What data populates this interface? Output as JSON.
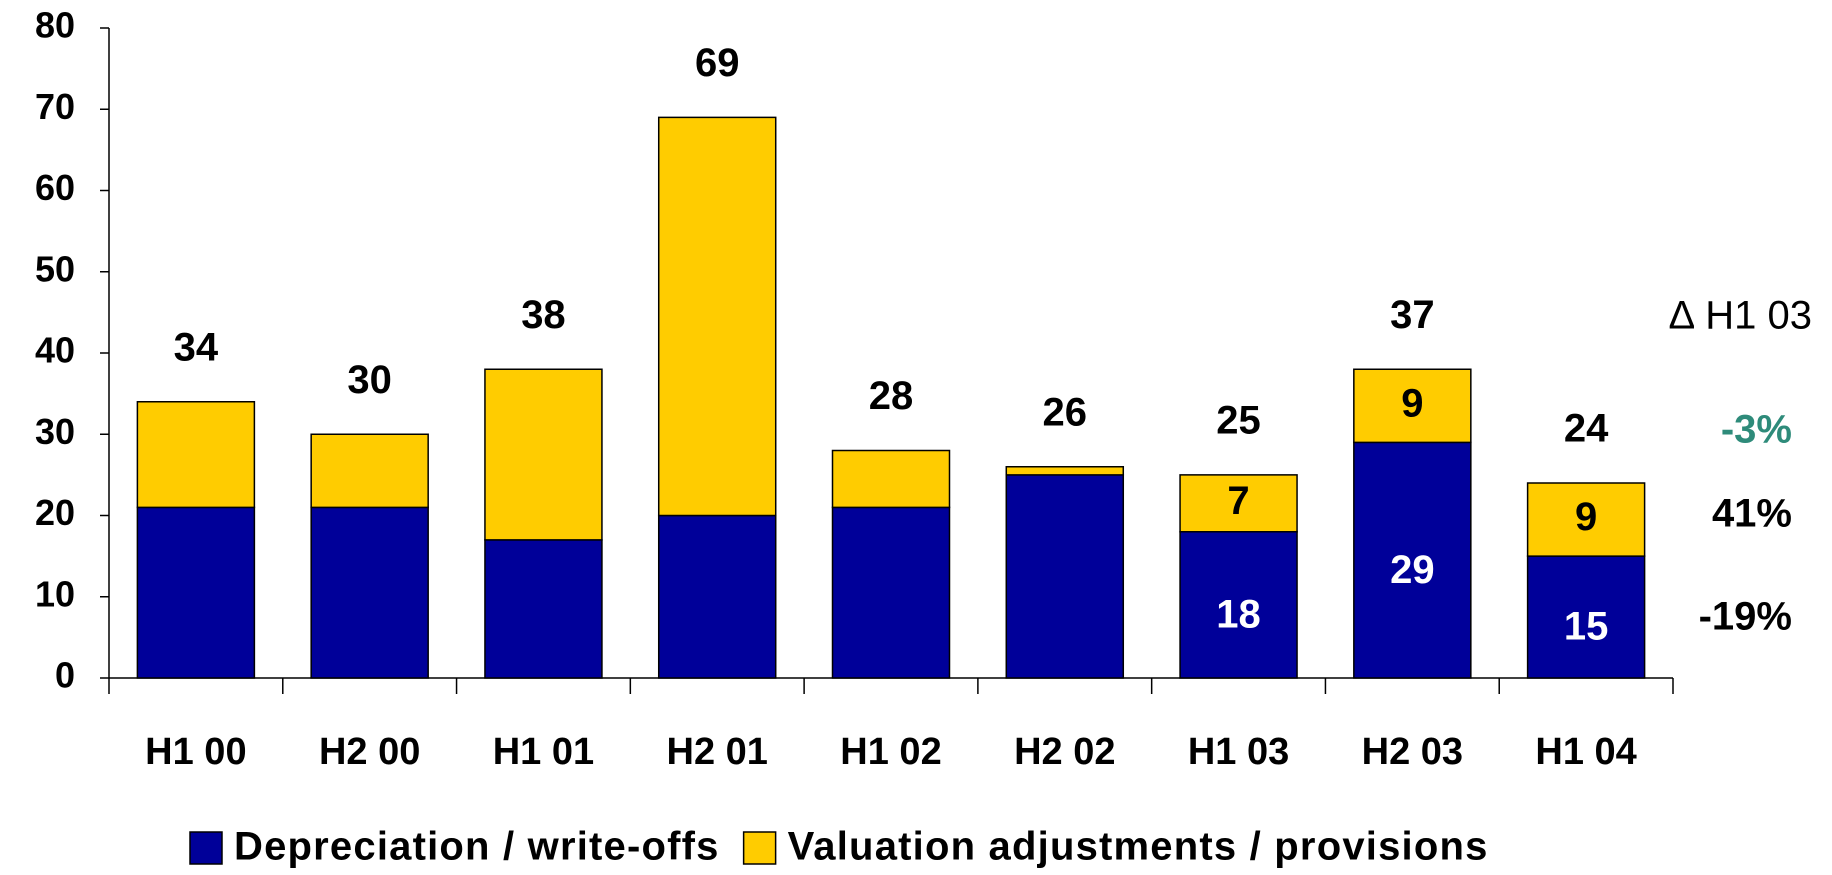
{
  "chart_data": {
    "type": "stacked_bar",
    "categories": [
      "H1 00",
      "H2 00",
      "H1 01",
      "H2 01",
      "H1 02",
      "H2 02",
      "H1 03",
      "H2 03",
      "H1 04"
    ],
    "series": [
      {
        "name": "Depreciation / write-offs",
        "color": "#000099",
        "label_color": "#ffffff",
        "values": [
          21,
          21,
          17,
          20,
          21,
          25,
          18,
          29,
          15
        ],
        "value_labels": [
          null,
          null,
          null,
          null,
          null,
          null,
          "18",
          "29",
          "15"
        ]
      },
      {
        "name": "Valuation adjustments / provisions",
        "color": "#ffcc00",
        "label_color": "#000000",
        "values": [
          13,
          9,
          21,
          49,
          7,
          1,
          7,
          9,
          9
        ],
        "value_labels": [
          null,
          null,
          null,
          null,
          null,
          null,
          "7",
          "9",
          "9"
        ]
      }
    ],
    "totals": [
      34,
      30,
      38,
      69,
      28,
      26,
      25,
      37,
      24
    ],
    "ylim": [
      0,
      80
    ],
    "yticks": [
      0,
      10,
      20,
      30,
      40,
      50,
      60,
      70,
      80
    ],
    "legend": "bottom",
    "annotations": {
      "title": "∆ H1 03",
      "items": [
        {
          "label": "-3%",
          "color": "#2e8b7a"
        },
        {
          "label": "41%",
          "color": "#000000"
        },
        {
          "label": "-19%",
          "color": "#000000"
        }
      ]
    }
  }
}
